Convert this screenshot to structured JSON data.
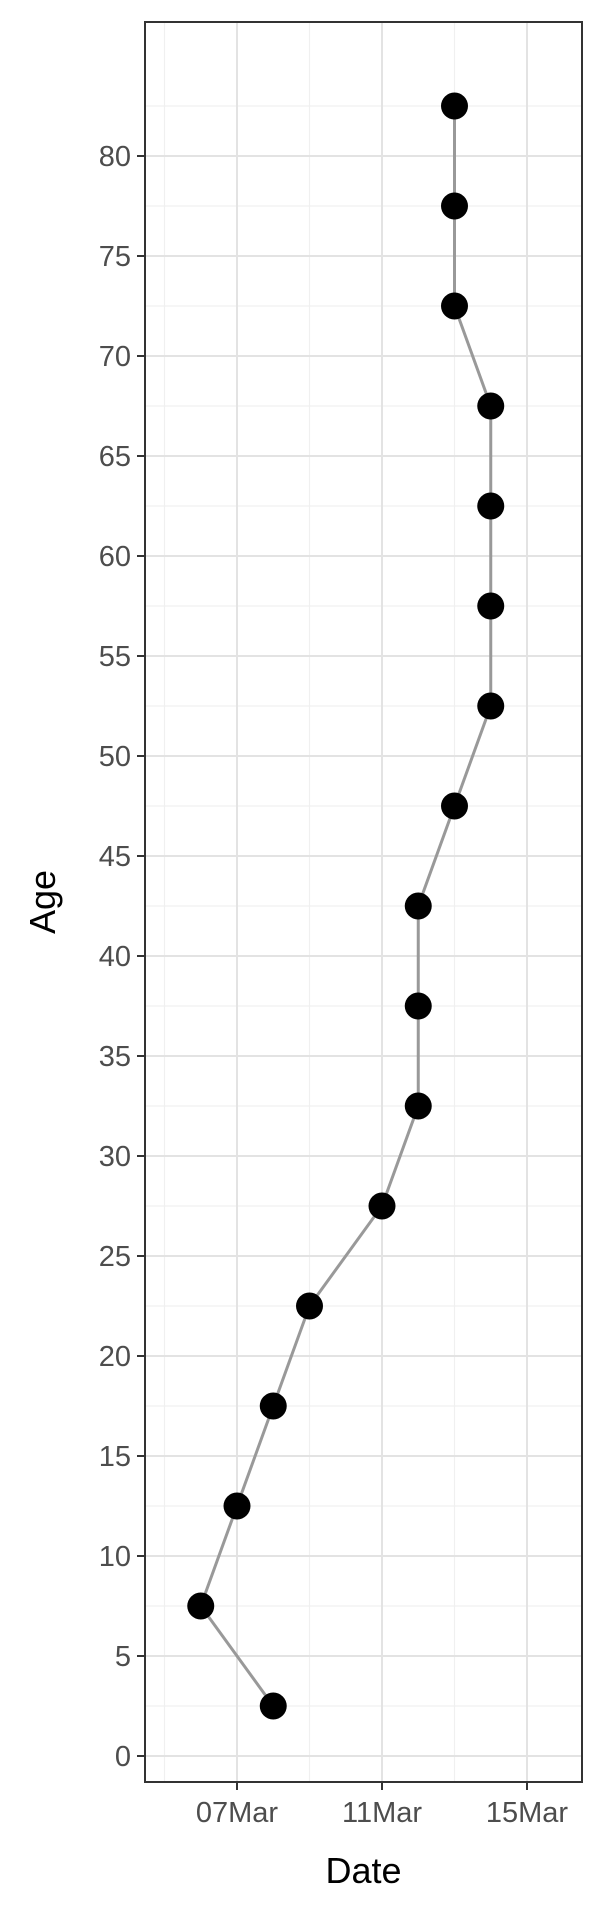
{
  "chart_data": {
    "type": "line",
    "title": "",
    "xlabel": "Date",
    "ylabel": "Age",
    "x_axis": {
      "type": "date",
      "ticks": [
        "07Mar",
        "11Mar",
        "15Mar"
      ]
    },
    "y_axis": {
      "ticks": [
        0,
        5,
        10,
        15,
        20,
        25,
        30,
        35,
        40,
        45,
        50,
        55,
        60,
        65,
        70,
        75,
        80
      ]
    },
    "grid": true,
    "legend": "none",
    "series": [
      {
        "points": [
          {
            "x": "08Mar",
            "y": 2.5
          },
          {
            "x": "06Mar",
            "y": 7.5
          },
          {
            "x": "07Mar",
            "y": 12.5
          },
          {
            "x": "08Mar",
            "y": 17.5
          },
          {
            "x": "09Mar",
            "y": 22.5
          },
          {
            "x": "11Mar",
            "y": 27.5
          },
          {
            "x": "12Mar",
            "y": 32.5
          },
          {
            "x": "12Mar",
            "y": 37.5
          },
          {
            "x": "12Mar",
            "y": 42.5
          },
          {
            "x": "13Mar",
            "y": 47.5
          },
          {
            "x": "14Mar",
            "y": 52.5
          },
          {
            "x": "14Mar",
            "y": 57.5
          },
          {
            "x": "14Mar",
            "y": 62.5
          },
          {
            "x": "14Mar",
            "y": 67.5
          },
          {
            "x": "13Mar",
            "y": 72.5
          },
          {
            "x": "13Mar",
            "y": 77.5
          },
          {
            "x": "13Mar",
            "y": 82.5
          }
        ],
        "line_color": "#999999",
        "point_color": "#000000"
      }
    ]
  }
}
